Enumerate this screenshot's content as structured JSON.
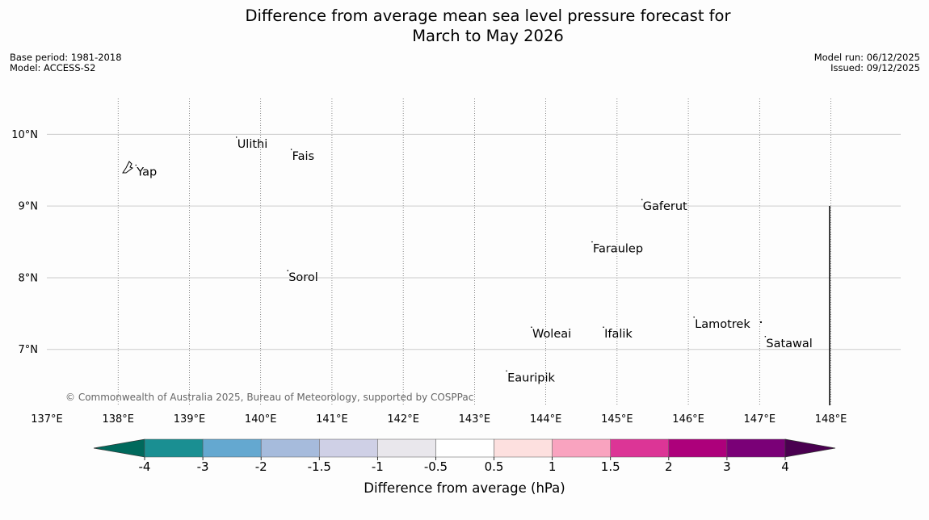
{
  "title": {
    "line1": "Difference from average mean sea level pressure forecast for",
    "line2": "March to May 2026"
  },
  "meta": {
    "base_period": "Base period: 1981-2018",
    "model": "Model: ACCESS-S2",
    "model_run": "Model run: 06/12/2025",
    "issued": "Issued: 09/12/2025"
  },
  "map": {
    "lon_range": [
      137,
      148.98
    ],
    "lat_range": [
      6.22,
      10.5
    ],
    "lon_ticks": [
      {
        "value": 137,
        "label": "137°E"
      },
      {
        "value": 138,
        "label": "138°E"
      },
      {
        "value": 139,
        "label": "139°E"
      },
      {
        "value": 140,
        "label": "140°E"
      },
      {
        "value": 141,
        "label": "141°E"
      },
      {
        "value": 142,
        "label": "142°E"
      },
      {
        "value": 143,
        "label": "143°E"
      },
      {
        "value": 144,
        "label": "144°E"
      },
      {
        "value": 145,
        "label": "145°E"
      },
      {
        "value": 146,
        "label": "146°E"
      },
      {
        "value": 147,
        "label": "147°E"
      },
      {
        "value": 148,
        "label": "148°E"
      }
    ],
    "lat_ticks": [
      {
        "value": 10,
        "label": "10°N"
      },
      {
        "value": 9,
        "label": "9°N"
      },
      {
        "value": 8,
        "label": "8°N"
      },
      {
        "value": 7,
        "label": "7°N"
      }
    ],
    "places": [
      {
        "name": "Yap",
        "lon": 138.25,
        "lat": 9.48
      },
      {
        "name": "Ulithi",
        "lon": 139.66,
        "lat": 9.87
      },
      {
        "name": "Fais",
        "lon": 140.43,
        "lat": 9.7
      },
      {
        "name": "Gaferut",
        "lon": 145.35,
        "lat": 9.0
      },
      {
        "name": "Faraulep",
        "lon": 144.65,
        "lat": 8.41
      },
      {
        "name": "Sorol",
        "lon": 140.38,
        "lat": 8.01
      },
      {
        "name": "Lamotrek",
        "lon": 146.08,
        "lat": 7.36
      },
      {
        "name": "Woleai",
        "lon": 143.8,
        "lat": 7.22
      },
      {
        "name": "Ifalik",
        "lon": 144.81,
        "lat": 7.22
      },
      {
        "name": "Satawal",
        "lon": 147.08,
        "lat": 7.09
      },
      {
        "name": "Eauripik",
        "lon": 143.45,
        "lat": 6.61
      }
    ],
    "copyright": "© Commonwealth of Australia 2025, Bureau of Meteorology, supported by COSPPac"
  },
  "colorbar": {
    "label": "Difference from average (hPa)",
    "ticks": [
      "-4",
      "-3",
      "-2",
      "-1.5",
      "-1",
      "-0.5",
      "0.5",
      "1",
      "1.5",
      "2",
      "3",
      "4"
    ],
    "under_color": "#00695c",
    "over_color": "#4a0050",
    "colors": [
      "#1a8f92",
      "#64a8d0",
      "#a6bbdc",
      "#cfd0e6",
      "#e9e7ec",
      "#ffffff",
      "#fde0df",
      "#f9a3bf",
      "#dc3596",
      "#ad007b",
      "#7a0077"
    ]
  }
}
